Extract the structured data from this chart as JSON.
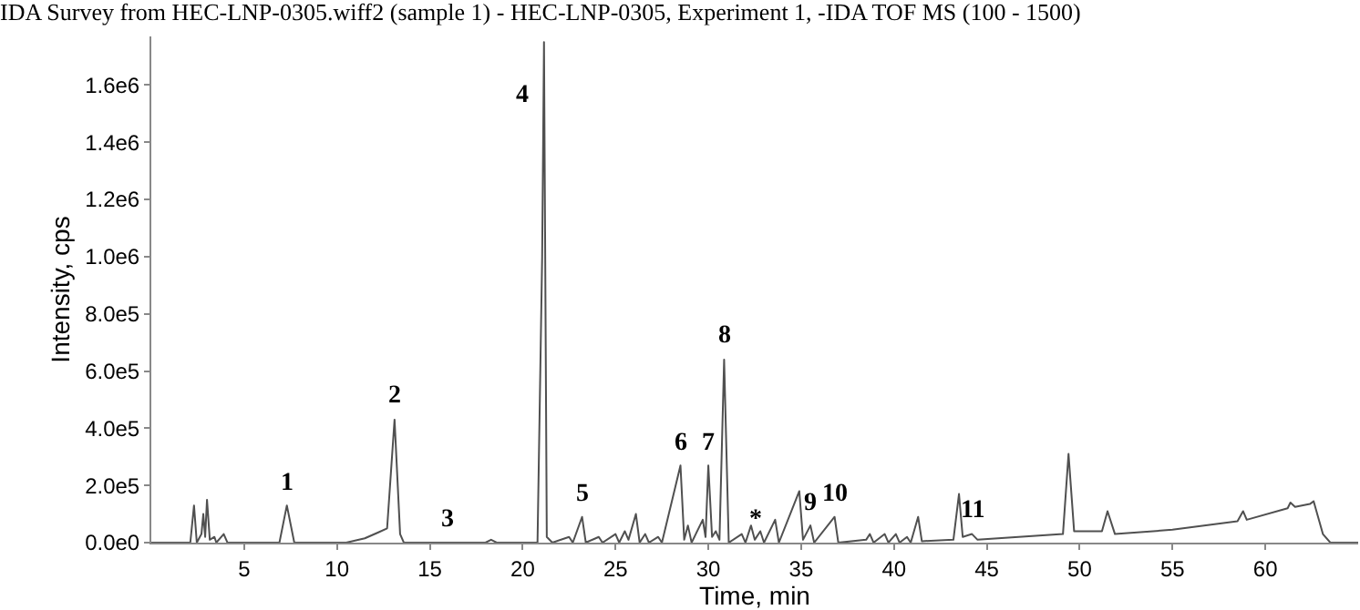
{
  "chart_data": {
    "type": "line",
    "title": "IDA Survey from HEC-LNP-0305.wiff2 (sample 1) - HEC-LNP-0305, Experiment 1, -IDA TOF MS (100 - 1500)",
    "xlabel": "Time, min",
    "ylabel": "Intensity, cps",
    "xlim": [
      0,
      65
    ],
    "xticks": [
      5,
      10,
      15,
      20,
      25,
      30,
      35,
      40,
      45,
      50,
      55,
      60
    ],
    "ylim": [
      0,
      1770000
    ],
    "yticks": [
      {
        "value": 0,
        "label": "0.0e0"
      },
      {
        "value": 200000,
        "label": "2.0e5"
      },
      {
        "value": 400000,
        "label": "4.0e5"
      },
      {
        "value": 600000,
        "label": "6.0e5"
      },
      {
        "value": 800000,
        "label": "8.0e5"
      },
      {
        "value": 1000000,
        "label": "1.0e6"
      },
      {
        "value": 1200000,
        "label": "1.2e6"
      },
      {
        "value": 1400000,
        "label": "1.4e6"
      },
      {
        "value": 1600000,
        "label": "1.6e6"
      }
    ],
    "grid": false,
    "marker": "none",
    "line_style": "solid",
    "series": [
      {
        "color": "#505050",
        "x": [
          0,
          2.1,
          2.3,
          2.45,
          2.7,
          2.8,
          2.9,
          3.0,
          3.15,
          3.4,
          3.5,
          3.9,
          4.1,
          6.9,
          7.3,
          7.7,
          10.5,
          11.5,
          12.2,
          12.7,
          13.1,
          13.4,
          13.6,
          18,
          18.3,
          18.6,
          20.8,
          21.05,
          21.15,
          21.3,
          21.6,
          22.5,
          22.7,
          23.2,
          23.4,
          24.1,
          24.3,
          25,
          25.2,
          25.5,
          25.7,
          26.1,
          26.3,
          26.6,
          26.8,
          27.3,
          27.5,
          28.5,
          28.7,
          28.9,
          29.1,
          29.7,
          29.85,
          30.0,
          30.2,
          30.4,
          30.6,
          30.85,
          31.1,
          31.8,
          32.0,
          32.3,
          32.5,
          32.8,
          33.0,
          33.6,
          33.8,
          34.9,
          35.1,
          35.5,
          35.7,
          36.8,
          37.0,
          38.5,
          38.7,
          38.9,
          39.5,
          39.7,
          40.1,
          40.3,
          40.7,
          40.9,
          41.3,
          41.5,
          43.2,
          43.5,
          43.7,
          44.2,
          44.5,
          49.1,
          49.4,
          49.7,
          51.2,
          51.5,
          51.9,
          55,
          58.5,
          58.8,
          59,
          61.2,
          61.35,
          61.6,
          62.4,
          62.6,
          63.1,
          63.5,
          65
        ],
        "values": [
          0,
          0,
          130000,
          0,
          30000,
          100000,
          20000,
          150000,
          10000,
          20000,
          0,
          30000,
          0,
          0,
          130000,
          0,
          0,
          15000,
          35000,
          50000,
          430000,
          30000,
          0,
          0,
          10000,
          0,
          0,
          1000000,
          1750000,
          20000,
          0,
          20000,
          0,
          90000,
          0,
          20000,
          0,
          30000,
          0,
          40000,
          10000,
          100000,
          0,
          30000,
          0,
          20000,
          0,
          270000,
          10000,
          60000,
          0,
          80000,
          20000,
          270000,
          20000,
          40000,
          10000,
          640000,
          0,
          30000,
          0,
          60000,
          10000,
          40000,
          0,
          80000,
          0,
          180000,
          10000,
          60000,
          0,
          90000,
          0,
          10000,
          30000,
          0,
          30000,
          0,
          30000,
          0,
          20000,
          0,
          90000,
          5000,
          10000,
          170000,
          20000,
          30000,
          10000,
          30000,
          310000,
          40000,
          40000,
          110000,
          30000,
          45000,
          75000,
          110000,
          80000,
          120000,
          140000,
          125000,
          135000,
          145000,
          30000,
          0,
          0
        ]
      }
    ],
    "annotations": [
      {
        "text": "1",
        "x": 7.3,
        "y": 130000
      },
      {
        "text": "2",
        "x": 13.1,
        "y": 430000
      },
      {
        "text": "3",
        "x": 16.0,
        "y": 0
      },
      {
        "text": "4",
        "x": 21.15,
        "y": 1750000
      },
      {
        "text": "5",
        "x": 23.2,
        "y": 90000
      },
      {
        "text": "6",
        "x": 28.5,
        "y": 270000
      },
      {
        "text": "7",
        "x": 30.0,
        "y": 270000
      },
      {
        "text": "8",
        "x": 30.85,
        "y": 640000
      },
      {
        "text": "9",
        "x": 35.5,
        "y": 60000
      },
      {
        "text": "10",
        "x": 36.8,
        "y": 90000
      },
      {
        "text": "11",
        "x": 44.2,
        "y": 30000
      },
      {
        "text": "*",
        "x": 32.5,
        "y": 0
      }
    ]
  }
}
